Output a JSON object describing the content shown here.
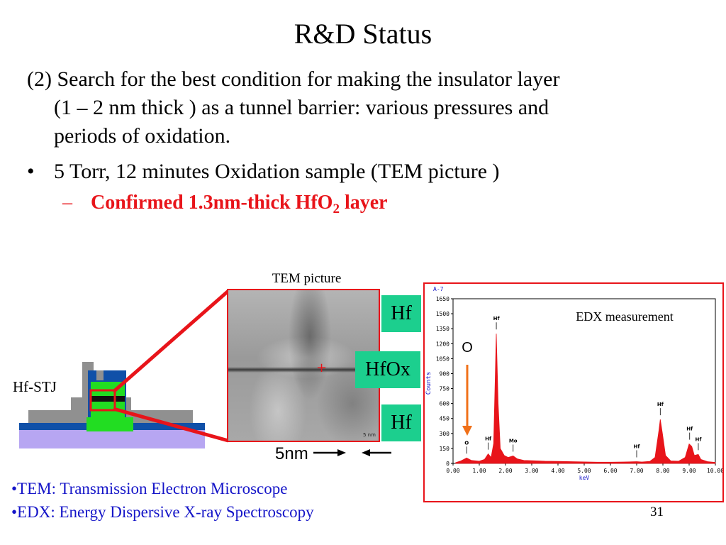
{
  "slide": {
    "title": "R&D Status",
    "paragraph_1_line_1": "(2) Search for the best condition for making the insulator layer",
    "paragraph_1_line_2": "(1 – 2 nm thick ) as a tunnel barrier: various pressures and",
    "paragraph_1_line_3": "periods of oxidation.",
    "bullet_symbol": "•",
    "bullet_1": "5 Torr,   12 minutes  Oxidation sample (TEM picture )",
    "sub_dash": "–",
    "sub_1_prefix": "Confirmed 1.3nm-thick HfO",
    "sub_1_subscript": "2",
    "sub_1_suffix": "  layer",
    "page_number": "31"
  },
  "figure": {
    "tem_caption": "TEM picture",
    "tem_scalebar": "5 nm",
    "label_hf_top": "Hf",
    "label_hfox": "HfOx",
    "label_hf_bottom": "Hf",
    "scale_label": "5nm",
    "device_label": "Hf-STJ"
  },
  "footnotes": {
    "tem": "•TEM: Transmission Electron Microscope",
    "edx": "•EDX: Energy Dispersive X-ray Spectroscopy"
  },
  "colors": {
    "accent_red": "#e8141a",
    "label_green": "#1ccf8e",
    "footnote_blue": "#1515c8",
    "arrow_orange": "#f07018",
    "spectrum_red": "#e8141a"
  },
  "chart_data": {
    "type": "line",
    "title": "EDX measurement",
    "panel_label": "A-7",
    "xlabel": "keV",
    "ylabel": "Counts",
    "xlim": [
      0,
      10
    ],
    "ylim": [
      0,
      1650
    ],
    "x_ticks": [
      "0.00",
      "1.00",
      "2.00",
      "3.00",
      "4.00",
      "5.00",
      "6.00",
      "7.00",
      "8.00",
      "9.00",
      "10.00"
    ],
    "y_ticks": [
      "0",
      "150",
      "300",
      "450",
      "600",
      "750",
      "900",
      "1050",
      "1200",
      "1350",
      "1500",
      "1650"
    ],
    "annotation_O": "O",
    "peaks": [
      {
        "label": "O",
        "x": 0.52,
        "y": 55
      },
      {
        "label": "Hf",
        "x": 1.34,
        "y": 95
      },
      {
        "label": "Hf",
        "x": 1.65,
        "y": 1300
      },
      {
        "label": "Mo",
        "x": 2.29,
        "y": 75
      },
      {
        "label": "Hf",
        "x": 7.9,
        "y": 440
      },
      {
        "label": "Hf",
        "x": 9.02,
        "y": 195
      },
      {
        "label": "Hf",
        "x": 9.35,
        "y": 90
      },
      {
        "label": "Hf",
        "x": 7.0,
        "y": 18
      }
    ],
    "series": [
      {
        "values": [
          [
            0.1,
            8
          ],
          [
            0.3,
            25
          ],
          [
            0.52,
            55
          ],
          [
            0.7,
            30
          ],
          [
            1.0,
            22
          ],
          [
            1.2,
            40
          ],
          [
            1.34,
            95
          ],
          [
            1.45,
            60
          ],
          [
            1.55,
            200
          ],
          [
            1.65,
            1300
          ],
          [
            1.72,
            600
          ],
          [
            1.8,
            150
          ],
          [
            1.95,
            80
          ],
          [
            2.1,
            60
          ],
          [
            2.29,
            75
          ],
          [
            2.45,
            45
          ],
          [
            2.7,
            30
          ],
          [
            3.0,
            28
          ],
          [
            3.5,
            22
          ],
          [
            4.0,
            20
          ],
          [
            4.5,
            18
          ],
          [
            5.0,
            15
          ],
          [
            5.5,
            12
          ],
          [
            6.0,
            12
          ],
          [
            6.5,
            14
          ],
          [
            7.0,
            18
          ],
          [
            7.2,
            14
          ],
          [
            7.5,
            20
          ],
          [
            7.7,
            60
          ],
          [
            7.85,
            330
          ],
          [
            7.9,
            440
          ],
          [
            7.98,
            300
          ],
          [
            8.1,
            80
          ],
          [
            8.3,
            25
          ],
          [
            8.6,
            22
          ],
          [
            8.85,
            60
          ],
          [
            9.0,
            195
          ],
          [
            9.1,
            170
          ],
          [
            9.2,
            80
          ],
          [
            9.35,
            90
          ],
          [
            9.45,
            40
          ],
          [
            9.7,
            18
          ],
          [
            10.0,
            10
          ]
        ]
      }
    ]
  }
}
